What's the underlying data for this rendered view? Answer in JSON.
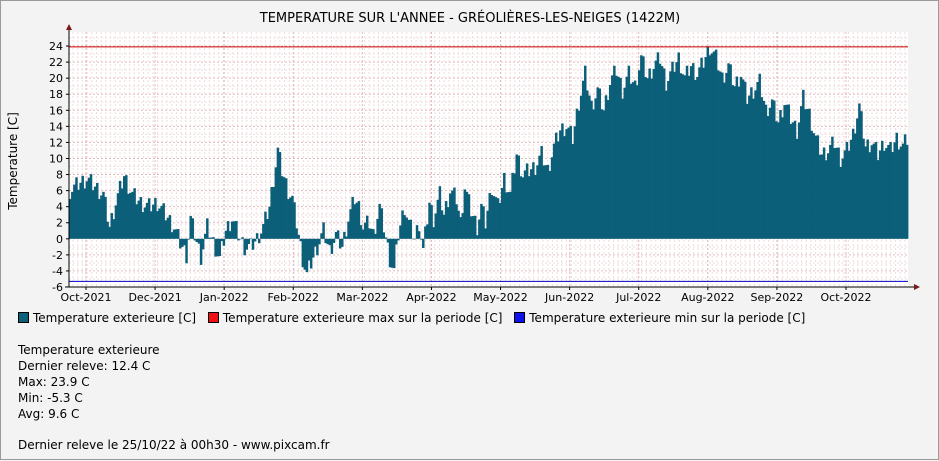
{
  "chart_data": {
    "type": "bar",
    "title": "TEMPERATURE SUR L'ANNEE - GRÉOLIÈRES-LES-NEIGES (1422M)",
    "ylabel": "Temperature [C]",
    "xlabel": "",
    "ylim": [
      -6,
      25
    ],
    "yticks": [
      "24",
      "22",
      "20",
      "18",
      "16",
      "14",
      "12",
      "10",
      "8",
      "6",
      "4",
      "2",
      "0",
      "-2",
      "-4",
      "-6"
    ],
    "xticks": [
      "Oct-2021",
      "Dec-2021",
      "Jan-2022",
      "Feb-2022",
      "Mar-2022",
      "Apr-2022",
      "May-2022",
      "Jun-2022",
      "Jul-2022",
      "Aug-2022",
      "Sep-2022",
      "Oct-2022"
    ],
    "grid": true,
    "legend_position": "bottom",
    "max_line": 23.9,
    "min_line": -5.3,
    "colors": {
      "series": "#0c5f79",
      "max": "#cc0000",
      "min": "#0000cc"
    },
    "series": [
      {
        "name": "Temperature exterieure [C]",
        "comment_keypoints": "daily values Oct-2021 to Oct-2022",
        "keypoints": [
          [
            0,
            6.0
          ],
          [
            4,
            6.8
          ],
          [
            8,
            7.5
          ],
          [
            12,
            6.5
          ],
          [
            16,
            5.5
          ],
          [
            19,
            1.5
          ],
          [
            22,
            4.5
          ],
          [
            26,
            7.8
          ],
          [
            30,
            5.5
          ],
          [
            34,
            4.5
          ],
          [
            38,
            4.0
          ],
          [
            42,
            4.5
          ],
          [
            46,
            3.0
          ],
          [
            50,
            1.5
          ],
          [
            53,
            -0.5
          ],
          [
            56,
            -2.0
          ],
          [
            58,
            2.5
          ],
          [
            60,
            0.5
          ],
          [
            63,
            -2.2
          ],
          [
            66,
            1.5
          ],
          [
            69,
            -0.5
          ],
          [
            72,
            -2.5
          ],
          [
            75,
            1.0
          ],
          [
            78,
            2.5
          ],
          [
            81,
            0.5
          ],
          [
            84,
            -1.0
          ],
          [
            87,
            -1.0
          ],
          [
            90,
            0.0
          ],
          [
            93,
            1.5
          ],
          [
            96,
            4.0
          ],
          [
            98,
            7.5
          ],
          [
            100,
            11.0
          ],
          [
            102,
            8.5
          ],
          [
            105,
            6.0
          ],
          [
            107,
            5.0
          ],
          [
            109,
            2.0
          ],
          [
            112,
            -2.5
          ],
          [
            114,
            -4.5
          ],
          [
            116,
            -3.0
          ],
          [
            119,
            -1.0
          ],
          [
            122,
            1.0
          ],
          [
            125,
            -1.5
          ],
          [
            128,
            0.5
          ],
          [
            131,
            -1.0
          ],
          [
            134,
            2.5
          ],
          [
            137,
            5.0
          ],
          [
            139,
            4.0
          ],
          [
            141,
            1.5
          ],
          [
            144,
            2.0
          ],
          [
            146,
            0.5
          ],
          [
            149,
            4.0
          ],
          [
            151,
            1.5
          ],
          [
            154,
            -2.5
          ],
          [
            156,
            -4.0
          ],
          [
            158,
            0.5
          ],
          [
            161,
            4.0
          ],
          [
            163,
            2.0
          ],
          [
            166,
            0.0
          ],
          [
            168,
            2.0
          ],
          [
            170,
            -1.5
          ],
          [
            173,
            4.5
          ],
          [
            175,
            2.5
          ],
          [
            178,
            5.5
          ],
          [
            180,
            3.0
          ],
          [
            183,
            6.0
          ],
          [
            186,
            5.0
          ],
          [
            188,
            2.0
          ],
          [
            190,
            6.5
          ],
          [
            193,
            3.5
          ],
          [
            196,
            1.5
          ],
          [
            198,
            4.0
          ],
          [
            200,
            2.0
          ],
          [
            203,
            6.5
          ],
          [
            206,
            4.0
          ],
          [
            209,
            7.5
          ],
          [
            212,
            5.5
          ],
          [
            215,
            10.5
          ],
          [
            218,
            8.0
          ],
          [
            221,
            8.5
          ],
          [
            224,
            9.0
          ],
          [
            227,
            10.5
          ],
          [
            230,
            8.5
          ],
          [
            233,
            11.5
          ],
          [
            236,
            13.5
          ],
          [
            239,
            14.0
          ],
          [
            242,
            12.5
          ],
          [
            245,
            17.0
          ],
          [
            248,
            20.5
          ],
          [
            251,
            16.5
          ],
          [
            254,
            18.5
          ],
          [
            257,
            16.0
          ],
          [
            260,
            19.5
          ],
          [
            263,
            21.0
          ],
          [
            266,
            18.5
          ],
          [
            269,
            20.5
          ],
          [
            272,
            19.0
          ],
          [
            275,
            22.5
          ],
          [
            278,
            20.0
          ],
          [
            281,
            21.5
          ],
          [
            284,
            22.5
          ],
          [
            287,
            19.5
          ],
          [
            290,
            21.0
          ],
          [
            293,
            22.5
          ],
          [
            296,
            20.0
          ],
          [
            299,
            21.5
          ],
          [
            302,
            20.5
          ],
          [
            305,
            22.0
          ],
          [
            308,
            23.9
          ],
          [
            311,
            22.5
          ],
          [
            314,
            20.0
          ],
          [
            317,
            21.5
          ],
          [
            320,
            19.0
          ],
          [
            323,
            20.5
          ],
          [
            326,
            17.5
          ],
          [
            329,
            18.5
          ],
          [
            332,
            19.5
          ],
          [
            335,
            16.0
          ],
          [
            338,
            17.0
          ],
          [
            341,
            14.5
          ],
          [
            344,
            17.0
          ],
          [
            347,
            15.0
          ],
          [
            350,
            13.5
          ],
          [
            353,
            17.5
          ],
          [
            356,
            15.5
          ],
          [
            359,
            12.5
          ],
          [
            362,
            10.5
          ],
          [
            365,
            11.0
          ],
          [
            368,
            12.0
          ],
          [
            371,
            10.0
          ],
          [
            374,
            11.0
          ],
          [
            377,
            13.0
          ],
          [
            380,
            16.5
          ],
          [
            383,
            11.5
          ],
          [
            386,
            12.0
          ],
          [
            389,
            10.5
          ],
          [
            392,
            12.0
          ],
          [
            395,
            11.0
          ],
          [
            398,
            12.5
          ],
          [
            401,
            11.5
          ],
          [
            403,
            12.4
          ]
        ]
      }
    ]
  },
  "legend": {
    "series": "Temperature exterieure [C]",
    "max": "Temperature exterieure max sur la periode [C]",
    "min": "Temperature exterieure min sur la periode [C]"
  },
  "stats": {
    "heading": "Temperature exterieure",
    "last": "Dernier releve: 12.4 C",
    "max": "Max: 23.9 C",
    "min": "Min: -5.3 C",
    "avg": "Avg: 9.6 C"
  },
  "footer": "Dernier releve le 25/10/22 à 00h30 - www.pixcam.fr"
}
